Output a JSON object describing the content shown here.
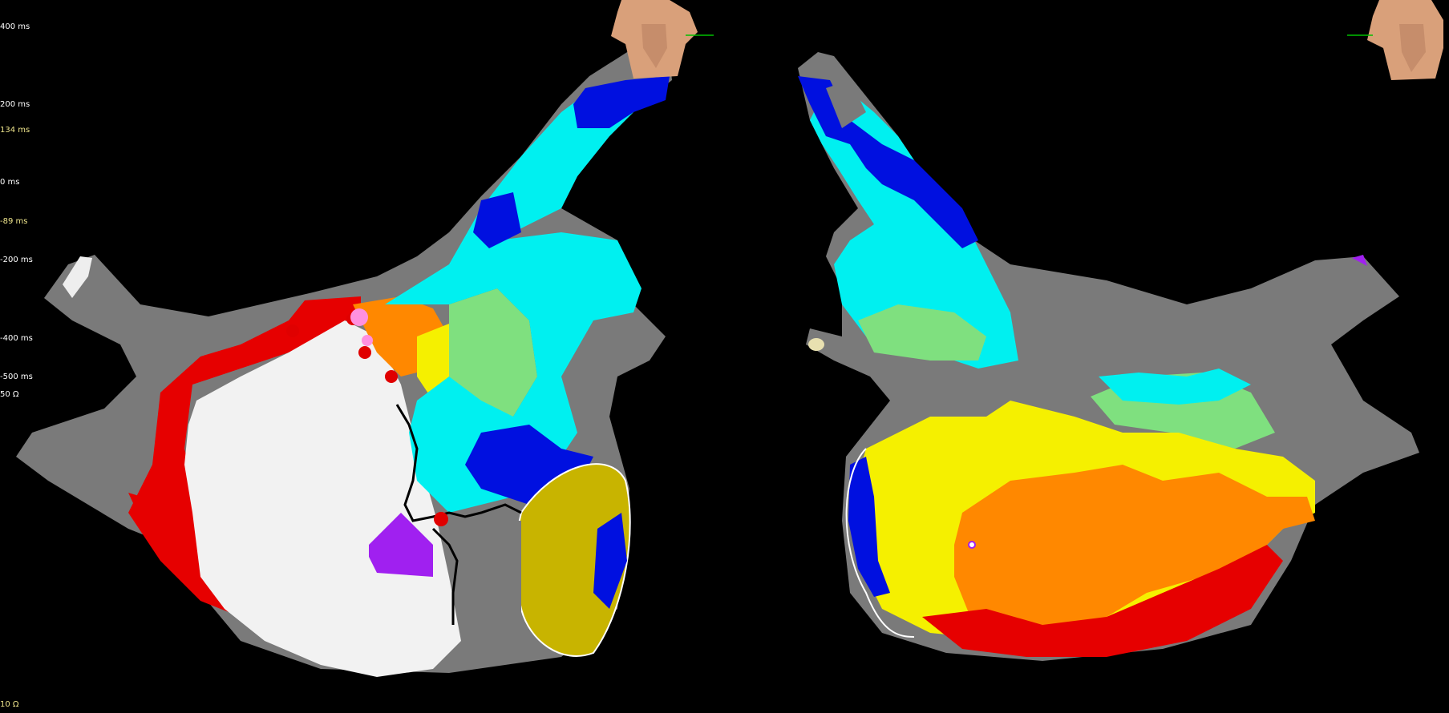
{
  "scale_labels": [
    {
      "text": "400 ms",
      "color": "white"
    },
    {
      "text": "200 ms",
      "color": "white"
    },
    {
      "text": "134 ms",
      "color": "yellow"
    },
    {
      "text": "0 ms",
      "color": "white"
    },
    {
      "text": "-89 ms",
      "color": "yellow"
    },
    {
      "text": "-200 ms",
      "color": "white"
    },
    {
      "text": "-400 ms",
      "color": "white"
    },
    {
      "text": "-500 ms",
      "color": "white"
    },
    {
      "text": "50 Ω",
      "color": "white"
    },
    {
      "text": "10 Ω",
      "color": "yellow"
    }
  ],
  "colors": {
    "background": "#000000",
    "unmapped_tissue": "#7a7a7a",
    "scar_white": "#f2f2f2",
    "red": "#e60000",
    "orange": "#ff8800",
    "yellow": "#f5f000",
    "green": "#7fe07f",
    "cyan": "#00f0f0",
    "blue": "#0010e0",
    "purple": "#a020f0",
    "torso": "#d9a07a"
  },
  "icons": [
    "torso-orientation-icon",
    "torso-orientation-icon"
  ]
}
